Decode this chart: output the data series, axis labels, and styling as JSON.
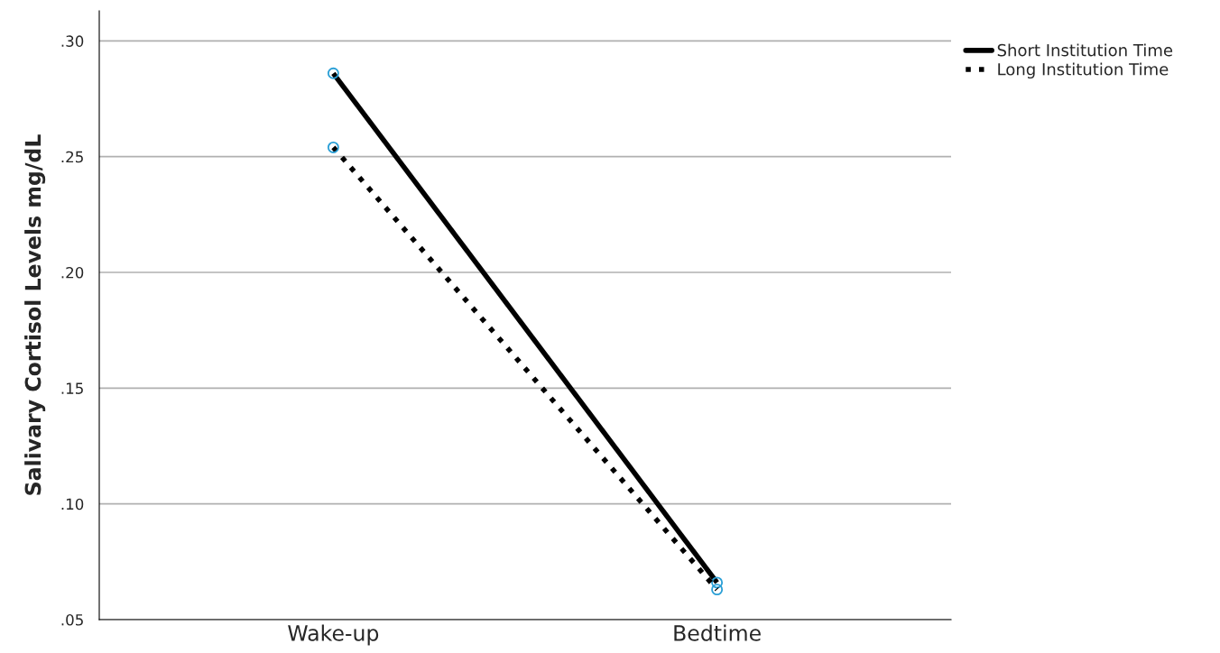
{
  "chart_data": {
    "type": "line",
    "ylabel": "Salivary Cortisol Levels mg/dL",
    "categories": [
      "Wake-up",
      "Bedtime"
    ],
    "series": [
      {
        "name": "Short Institution Time",
        "color": "#000000",
        "values": [
          0.286,
          0.066
        ],
        "line_style": "solid"
      },
      {
        "name": "Long Institution Time",
        "color": "#000000",
        "values": [
          0.254,
          0.063
        ],
        "line_style": "dotted"
      }
    ],
    "ylim": [
      0.05,
      0.313
    ],
    "yticks": [
      {
        "value": 0.05,
        "label": ".05"
      },
      {
        "value": 0.1,
        "label": ".10"
      },
      {
        "value": 0.15,
        "label": ".15"
      },
      {
        "value": 0.2,
        "label": ".20"
      },
      {
        "value": 0.25,
        "label": ".25"
      },
      {
        "value": 0.3,
        "label": ".30"
      }
    ],
    "grid": "y",
    "legend": "top right",
    "marker": "circle"
  }
}
